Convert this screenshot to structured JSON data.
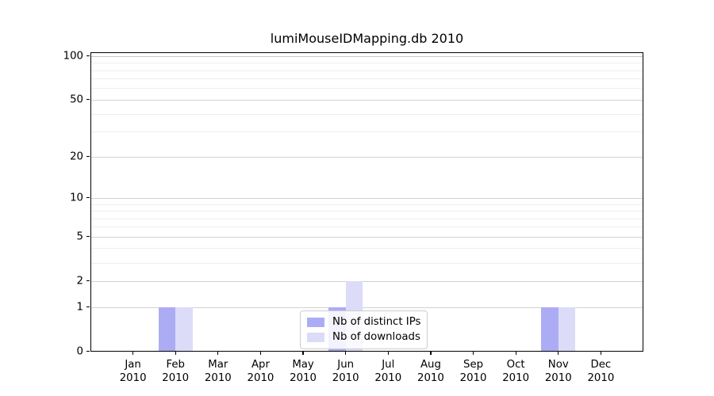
{
  "chart_data": {
    "type": "bar",
    "title": "lumiMouseIDMapping.db 2010",
    "x": {
      "categories": [
        "Jan",
        "Feb",
        "Mar",
        "Apr",
        "May",
        "Jun",
        "Jul",
        "Aug",
        "Sep",
        "Oct",
        "Nov",
        "Dec"
      ],
      "year": "2010"
    },
    "series": [
      {
        "name": "Nb of distinct IPs",
        "color": "#acacf4",
        "values": [
          0,
          1,
          0,
          0,
          0,
          1,
          0,
          0,
          0,
          0,
          1,
          0
        ]
      },
      {
        "name": "Nb of downloads",
        "color": "#dcdcf8",
        "values": [
          0,
          1,
          0,
          0,
          0,
          2,
          0,
          0,
          0,
          0,
          1,
          0
        ]
      }
    ],
    "yaxis": {
      "scale": "log1p",
      "ticks": [
        0,
        1,
        2,
        5,
        10,
        20,
        50,
        100
      ],
      "minor_gridlines": [
        3,
        4,
        6,
        7,
        8,
        9,
        30,
        40,
        60,
        70,
        80,
        90
      ],
      "range": [
        0,
        107
      ]
    },
    "legend": {
      "position": "lower center"
    },
    "grid": "horizontal",
    "colors": {
      "axis": "#000000",
      "grid_major": "#d2d2d2",
      "grid_minor": "#eeeeee",
      "background": "#ffffff"
    }
  }
}
